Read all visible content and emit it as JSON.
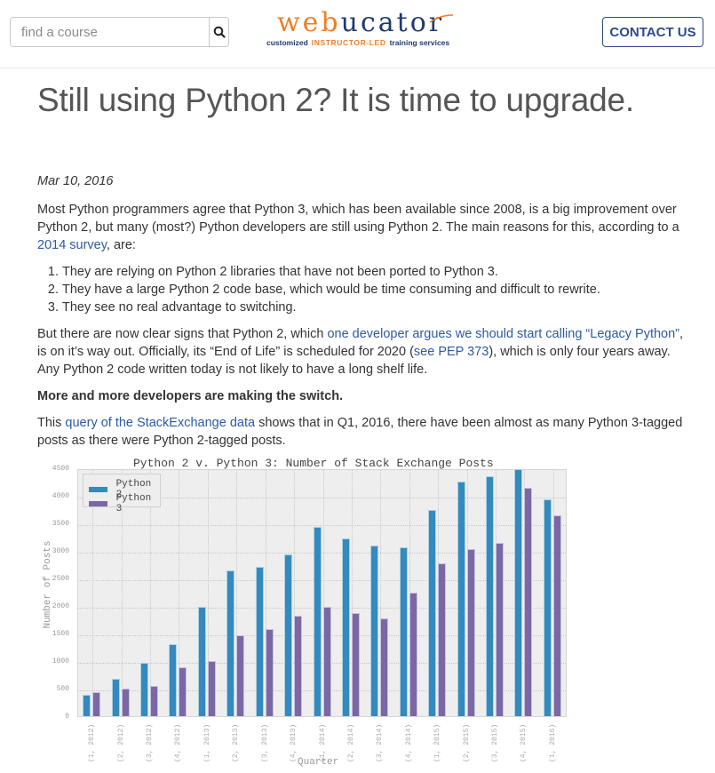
{
  "header": {
    "search_placeholder": "find a course",
    "search_icon": "search-icon",
    "logo": {
      "word_orange": "web",
      "word_blue": "ucator",
      "tag1": "customized",
      "tag2": "INSTRUCTOR-LED",
      "tag3": "training services"
    },
    "contact_label": "CONTACT US"
  },
  "article": {
    "title": "Still using Python 2? It is time to upgrade.",
    "date": "Mar 10, 2016",
    "p1_a": "Most Python programmers agree that Python 3, which has been available since 2008, is a big improvement over Python 2, but many (most?) Python developers are still using Python 2. The main reasons for this, according to a ",
    "p1_link": "2014 survey",
    "p1_b": ", are:",
    "reasons": [
      "They are relying on Python 2 libraries that have not been ported to Python 3.",
      "They have a large Python 2 code base, which would be time consuming and difficult to rewrite.",
      "They see no real advantage to switching."
    ],
    "p2_a": "But there are now clear signs that Python 2, which ",
    "p2_link1": "one developer argues we should start calling “Legacy Python”",
    "p2_b": ", is on it’s way out. Officially, its “End of Life” is scheduled for 2020 (",
    "p2_link2": "see PEP 373",
    "p2_c": "), which is only four years away. Any Python 2 code written today is not likely to have a long shelf life.",
    "subheading": "More and more developers are making the switch.",
    "p3_a": "This ",
    "p3_link": "query of the StackExchange data",
    "p3_b": " shows that in Q1, 2016, there have been almost as many Python 3-tagged posts as there were Python 2-tagged posts."
  },
  "colors": {
    "python2": "#348abd",
    "python3": "#7a68a6",
    "link": "#2d5aa0",
    "brand_orange": "#f07e26",
    "brand_blue": "#1f3a6e"
  },
  "chart_data": {
    "type": "bar",
    "title": "Python 2 v. Python 3: Number of Stack Exchange Posts",
    "xlabel": "Quarter",
    "ylabel": "Number of Posts",
    "ylim": [
      0,
      4500
    ],
    "yticks": [
      0,
      500,
      1000,
      1500,
      2000,
      2500,
      3000,
      3500,
      4000,
      4500
    ],
    "grid": true,
    "legend_position": "upper left",
    "categories": [
      "(1, 2012)",
      "(2, 2012)",
      "(3, 2012)",
      "(4, 2012)",
      "(1, 2013)",
      "(2, 2013)",
      "(3, 2013)",
      "(4, 2013)",
      "(1, 2014)",
      "(2, 2014)",
      "(3, 2014)",
      "(4, 2014)",
      "(1, 2015)",
      "(2, 2015)",
      "(3, 2015)",
      "(4, 2015)",
      "(1, 2016)"
    ],
    "series": [
      {
        "name": "Python 2",
        "values": [
          385,
          670,
          960,
          1300,
          1985,
          2640,
          2710,
          2930,
          3430,
          3220,
          3100,
          3060,
          3745,
          4260,
          4350,
          4480,
          3930
        ]
      },
      {
        "name": "Python 3",
        "values": [
          430,
          500,
          550,
          885,
          1000,
          1475,
          1575,
          1830,
          1990,
          1870,
          1780,
          2250,
          2780,
          3030,
          3150,
          4150,
          3650
        ]
      }
    ]
  }
}
